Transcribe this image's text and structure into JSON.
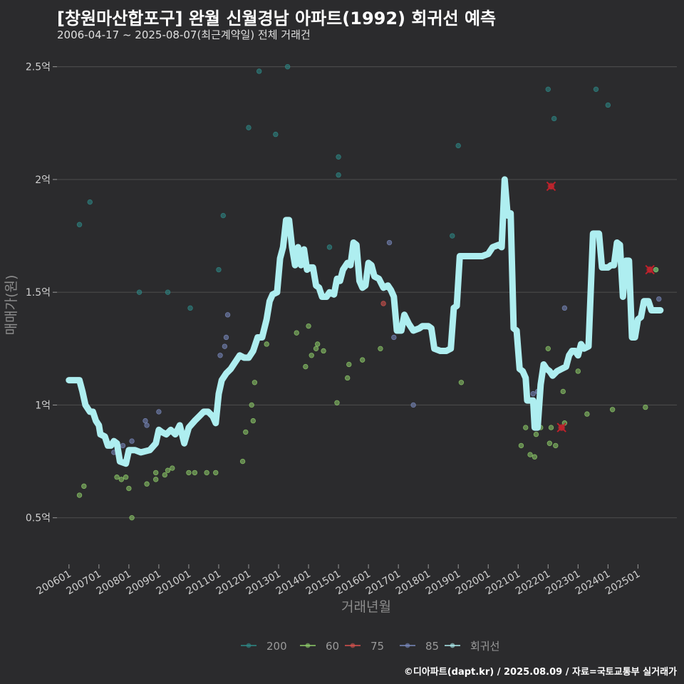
{
  "header": {
    "title": "[창원마산합포구] 완월 신월경남 아파트(1992) 회귀선 예측",
    "subtitle": "2006-04-17 ~ 2025-08-07(최근계약일) 전체 거래건"
  },
  "footer": {
    "source": "©디아파트(dapt.kr) / 2025.08.09 / 자료=국토교통부 실거래가"
  },
  "colors": {
    "background": "#2b2b2d",
    "grid": "#4a4a4a",
    "s200": "#2e8b88",
    "s60": "#8fce6a",
    "s75": "#d9534f",
    "s85": "#7a8bbf",
    "regression": "#aeeef0",
    "predict": "#c0202a"
  },
  "chart_data": {
    "type": "scatter",
    "title": "[창원마산합포구] 완월 신월경남 아파트(1992) 회귀선 예측",
    "xlabel": "거래년월",
    "ylabel": "매매가(원)",
    "xlim": [
      2005.6,
      2026.3
    ],
    "ylim": [
      0.3,
      2.6
    ],
    "yunit": "억",
    "xticks": [
      {
        "label": "200601",
        "x": 2006.0
      },
      {
        "label": "200701",
        "x": 2007.0
      },
      {
        "label": "200801",
        "x": 2008.0
      },
      {
        "label": "200901",
        "x": 2009.0
      },
      {
        "label": "201001",
        "x": 2010.0
      },
      {
        "label": "201101",
        "x": 2011.0
      },
      {
        "label": "201201",
        "x": 2012.0
      },
      {
        "label": "201301",
        "x": 2013.0
      },
      {
        "label": "201401",
        "x": 2014.0
      },
      {
        "label": "201501",
        "x": 2015.0
      },
      {
        "label": "201601",
        "x": 2016.0
      },
      {
        "label": "201701",
        "x": 2017.0
      },
      {
        "label": "201801",
        "x": 2018.0
      },
      {
        "label": "201901",
        "x": 2019.0
      },
      {
        "label": "202001",
        "x": 2020.0
      },
      {
        "label": "202101",
        "x": 2021.0
      },
      {
        "label": "202201",
        "x": 2022.0
      },
      {
        "label": "202301",
        "x": 2023.0
      },
      {
        "label": "202401",
        "x": 2024.0
      },
      {
        "label": "202501",
        "x": 2025.0
      }
    ],
    "yticks": [
      {
        "label": "0.5억",
        "y": 0.5
      },
      {
        "label": "1억",
        "y": 1.0
      },
      {
        "label": "1.5억",
        "y": 1.5
      },
      {
        "label": "2억",
        "y": 2.0
      },
      {
        "label": "2.5억",
        "y": 2.5
      }
    ],
    "legend": {
      "position": "bottom",
      "entries": [
        {
          "name": "200",
          "key": "s200"
        },
        {
          "name": "60",
          "key": "s60"
        },
        {
          "name": "75",
          "key": "s75"
        },
        {
          "name": "85",
          "key": "s85"
        },
        {
          "name": "회귀선",
          "key": "regression"
        }
      ]
    },
    "series": [
      {
        "name": "200",
        "key": "s200",
        "points": [
          [
            2006.35,
            1.8
          ],
          [
            2006.7,
            1.9
          ],
          [
            2008.35,
            1.5
          ],
          [
            2009.3,
            1.5
          ],
          [
            2010.05,
            1.43
          ],
          [
            2011.0,
            1.6
          ],
          [
            2011.15,
            1.84
          ],
          [
            2012.0,
            2.23
          ],
          [
            2012.35,
            2.48
          ],
          [
            2012.9,
            2.2
          ],
          [
            2013.3,
            2.5
          ],
          [
            2014.7,
            1.7
          ],
          [
            2015.0,
            2.02
          ],
          [
            2015.0,
            2.1
          ],
          [
            2018.8,
            1.75
          ],
          [
            2019.0,
            2.15
          ],
          [
            2022.0,
            2.4
          ],
          [
            2022.2,
            2.27
          ],
          [
            2023.6,
            2.4
          ],
          [
            2024.0,
            2.33
          ],
          [
            2025.6,
            1.6
          ]
        ]
      },
      {
        "name": "60",
        "key": "s60",
        "points": [
          [
            2006.35,
            0.6
          ],
          [
            2006.5,
            0.64
          ],
          [
            2007.6,
            0.68
          ],
          [
            2007.75,
            0.67
          ],
          [
            2007.9,
            0.68
          ],
          [
            2008.0,
            0.63
          ],
          [
            2008.1,
            0.5
          ],
          [
            2008.6,
            0.65
          ],
          [
            2008.9,
            0.67
          ],
          [
            2008.9,
            0.7
          ],
          [
            2009.2,
            0.69
          ],
          [
            2009.3,
            0.71
          ],
          [
            2009.45,
            0.72
          ],
          [
            2010.0,
            0.7
          ],
          [
            2010.2,
            0.7
          ],
          [
            2010.6,
            0.7
          ],
          [
            2010.9,
            0.7
          ],
          [
            2011.8,
            0.75
          ],
          [
            2011.9,
            0.88
          ],
          [
            2012.1,
            1.0
          ],
          [
            2012.15,
            0.93
          ],
          [
            2012.2,
            1.1
          ],
          [
            2012.6,
            1.27
          ],
          [
            2013.6,
            1.32
          ],
          [
            2013.9,
            1.17
          ],
          [
            2014.0,
            1.35
          ],
          [
            2014.1,
            1.22
          ],
          [
            2014.25,
            1.25
          ],
          [
            2014.3,
            1.27
          ],
          [
            2014.5,
            1.24
          ],
          [
            2014.95,
            1.01
          ],
          [
            2015.3,
            1.12
          ],
          [
            2015.35,
            1.18
          ],
          [
            2015.8,
            1.2
          ],
          [
            2016.4,
            1.25
          ],
          [
            2019.1,
            1.1
          ],
          [
            2021.1,
            0.82
          ],
          [
            2021.25,
            0.9
          ],
          [
            2021.4,
            0.78
          ],
          [
            2021.55,
            0.77
          ],
          [
            2021.6,
            0.87
          ],
          [
            2021.75,
            0.9
          ],
          [
            2022.0,
            1.25
          ],
          [
            2022.05,
            0.83
          ],
          [
            2022.1,
            0.9
          ],
          [
            2022.25,
            0.82
          ],
          [
            2022.5,
            1.06
          ],
          [
            2022.55,
            0.92
          ],
          [
            2023.0,
            1.15
          ],
          [
            2023.3,
            0.96
          ],
          [
            2024.15,
            0.98
          ],
          [
            2025.25,
            0.99
          ],
          [
            2025.6,
            1.6
          ]
        ]
      },
      {
        "name": "75",
        "key": "s75",
        "points": [
          [
            2016.5,
            1.45
          ],
          [
            2022.1,
            1.97
          ],
          [
            2022.45,
            0.9
          ],
          [
            2025.4,
            1.6
          ]
        ]
      },
      {
        "name": "85",
        "key": "s85",
        "points": [
          [
            2007.5,
            0.79
          ],
          [
            2007.6,
            0.82
          ],
          [
            2007.8,
            0.82
          ],
          [
            2008.1,
            0.84
          ],
          [
            2008.55,
            0.93
          ],
          [
            2008.6,
            0.91
          ],
          [
            2009.0,
            0.97
          ],
          [
            2011.05,
            1.22
          ],
          [
            2011.2,
            1.26
          ],
          [
            2011.25,
            1.3
          ],
          [
            2011.3,
            1.4
          ],
          [
            2016.7,
            1.72
          ],
          [
            2016.85,
            1.3
          ],
          [
            2017.5,
            1.0
          ],
          [
            2021.5,
            1.05
          ],
          [
            2021.65,
            1.06
          ],
          [
            2022.55,
            1.43
          ],
          [
            2025.7,
            1.47
          ]
        ]
      }
    ],
    "predictions": [
      [
        2022.1,
        1.97
      ],
      [
        2022.45,
        0.9
      ],
      [
        2025.4,
        1.6
      ]
    ],
    "regression": [
      [
        2006.0,
        1.11
      ],
      [
        2006.35,
        1.11
      ],
      [
        2006.45,
        1.06
      ],
      [
        2006.55,
        1.0
      ],
      [
        2006.7,
        0.97
      ],
      [
        2006.8,
        0.97
      ],
      [
        2006.9,
        0.93
      ],
      [
        2007.0,
        0.91
      ],
      [
        2007.05,
        0.87
      ],
      [
        2007.2,
        0.86
      ],
      [
        2007.3,
        0.82
      ],
      [
        2007.4,
        0.82
      ],
      [
        2007.5,
        0.84
      ],
      [
        2007.6,
        0.83
      ],
      [
        2007.7,
        0.75
      ],
      [
        2007.9,
        0.74
      ],
      [
        2008.0,
        0.8
      ],
      [
        2008.2,
        0.8
      ],
      [
        2008.4,
        0.79
      ],
      [
        2008.7,
        0.8
      ],
      [
        2008.9,
        0.83
      ],
      [
        2009.0,
        0.89
      ],
      [
        2009.1,
        0.88
      ],
      [
        2009.25,
        0.87
      ],
      [
        2009.4,
        0.89
      ],
      [
        2009.55,
        0.87
      ],
      [
        2009.7,
        0.91
      ],
      [
        2009.85,
        0.83
      ],
      [
        2010.0,
        0.9
      ],
      [
        2010.2,
        0.93
      ],
      [
        2010.35,
        0.95
      ],
      [
        2010.5,
        0.97
      ],
      [
        2010.65,
        0.97
      ],
      [
        2010.8,
        0.95
      ],
      [
        2010.9,
        0.92
      ],
      [
        2011.0,
        1.05
      ],
      [
        2011.1,
        1.11
      ],
      [
        2011.25,
        1.14
      ],
      [
        2011.4,
        1.16
      ],
      [
        2011.55,
        1.19
      ],
      [
        2011.7,
        1.22
      ],
      [
        2011.85,
        1.21
      ],
      [
        2012.0,
        1.21
      ],
      [
        2012.15,
        1.24
      ],
      [
        2012.3,
        1.3
      ],
      [
        2012.45,
        1.3
      ],
      [
        2012.6,
        1.38
      ],
      [
        2012.7,
        1.46
      ],
      [
        2012.8,
        1.49
      ],
      [
        2012.95,
        1.5
      ],
      [
        2013.05,
        1.65
      ],
      [
        2013.15,
        1.7
      ],
      [
        2013.25,
        1.82
      ],
      [
        2013.35,
        1.82
      ],
      [
        2013.45,
        1.7
      ],
      [
        2013.55,
        1.62
      ],
      [
        2013.65,
        1.7
      ],
      [
        2013.75,
        1.62
      ],
      [
        2013.85,
        1.69
      ],
      [
        2013.95,
        1.6
      ],
      [
        2014.05,
        1.61
      ],
      [
        2014.15,
        1.61
      ],
      [
        2014.25,
        1.53
      ],
      [
        2014.35,
        1.52
      ],
      [
        2014.45,
        1.48
      ],
      [
        2014.6,
        1.48
      ],
      [
        2014.7,
        1.5
      ],
      [
        2014.85,
        1.49
      ],
      [
        2014.95,
        1.56
      ],
      [
        2015.05,
        1.55
      ],
      [
        2015.15,
        1.6
      ],
      [
        2015.3,
        1.63
      ],
      [
        2015.4,
        1.62
      ],
      [
        2015.5,
        1.72
      ],
      [
        2015.6,
        1.71
      ],
      [
        2015.7,
        1.55
      ],
      [
        2015.8,
        1.52
      ],
      [
        2015.9,
        1.53
      ],
      [
        2016.0,
        1.63
      ],
      [
        2016.1,
        1.62
      ],
      [
        2016.2,
        1.57
      ],
      [
        2016.35,
        1.56
      ],
      [
        2016.5,
        1.52
      ],
      [
        2016.65,
        1.53
      ],
      [
        2016.75,
        1.51
      ],
      [
        2016.85,
        1.48
      ],
      [
        2016.95,
        1.33
      ],
      [
        2017.1,
        1.33
      ],
      [
        2017.2,
        1.4
      ],
      [
        2017.35,
        1.36
      ],
      [
        2017.5,
        1.33
      ],
      [
        2017.7,
        1.34
      ],
      [
        2017.8,
        1.35
      ],
      [
        2018.0,
        1.35
      ],
      [
        2018.1,
        1.34
      ],
      [
        2018.2,
        1.25
      ],
      [
        2018.4,
        1.24
      ],
      [
        2018.6,
        1.24
      ],
      [
        2018.75,
        1.25
      ],
      [
        2018.85,
        1.43
      ],
      [
        2018.95,
        1.44
      ],
      [
        2019.05,
        1.66
      ],
      [
        2019.4,
        1.66
      ],
      [
        2019.8,
        1.66
      ],
      [
        2020.0,
        1.67
      ],
      [
        2020.15,
        1.7
      ],
      [
        2020.35,
        1.71
      ],
      [
        2020.45,
        1.7
      ],
      [
        2020.55,
        2.0
      ],
      [
        2020.65,
        1.84
      ],
      [
        2020.75,
        1.85
      ],
      [
        2020.85,
        1.34
      ],
      [
        2020.95,
        1.33
      ],
      [
        2021.05,
        1.16
      ],
      [
        2021.15,
        1.15
      ],
      [
        2021.25,
        1.12
      ],
      [
        2021.3,
        1.02
      ],
      [
        2021.4,
        1.02
      ],
      [
        2021.5,
        1.02
      ],
      [
        2021.55,
        0.9
      ],
      [
        2021.65,
        0.9
      ],
      [
        2021.75,
        1.09
      ],
      [
        2021.85,
        1.18
      ],
      [
        2021.95,
        1.16
      ],
      [
        2022.05,
        1.15
      ],
      [
        2022.15,
        1.13
      ],
      [
        2022.3,
        1.15
      ],
      [
        2022.45,
        1.16
      ],
      [
        2022.6,
        1.17
      ],
      [
        2022.7,
        1.22
      ],
      [
        2022.8,
        1.24
      ],
      [
        2022.9,
        1.24
      ],
      [
        2023.0,
        1.22
      ],
      [
        2023.1,
        1.27
      ],
      [
        2023.2,
        1.25
      ],
      [
        2023.35,
        1.26
      ],
      [
        2023.5,
        1.76
      ],
      [
        2023.7,
        1.76
      ],
      [
        2023.8,
        1.61
      ],
      [
        2024.0,
        1.61
      ],
      [
        2024.1,
        1.62
      ],
      [
        2024.2,
        1.62
      ],
      [
        2024.3,
        1.72
      ],
      [
        2024.4,
        1.71
      ],
      [
        2024.5,
        1.48
      ],
      [
        2024.6,
        1.64
      ],
      [
        2024.7,
        1.64
      ],
      [
        2024.8,
        1.3
      ],
      [
        2024.9,
        1.3
      ],
      [
        2025.0,
        1.38
      ],
      [
        2025.1,
        1.39
      ],
      [
        2025.2,
        1.46
      ],
      [
        2025.35,
        1.46
      ],
      [
        2025.45,
        1.42
      ],
      [
        2025.6,
        1.42
      ],
      [
        2025.75,
        1.42
      ]
    ]
  }
}
